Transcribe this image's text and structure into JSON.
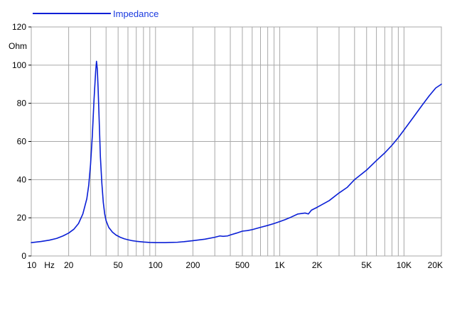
{
  "colors": {
    "series": "#0a1fd6",
    "legend_text": "#1a3adf",
    "grid": "#a8a8a8",
    "axis": "#000000"
  },
  "chart_data": {
    "type": "line",
    "x_scale": "log",
    "y_unit": "Ohm",
    "xlim": [
      10,
      20000
    ],
    "ylim": [
      0,
      120
    ],
    "grid": true,
    "legend_position": "top-left",
    "x_ticks": [
      {
        "value": 10,
        "label": "10"
      },
      {
        "value": 20,
        "label": "20"
      },
      {
        "value": 50,
        "label": "50"
      },
      {
        "value": 100,
        "label": "100"
      },
      {
        "value": 200,
        "label": "200"
      },
      {
        "value": 500,
        "label": "500"
      },
      {
        "value": 1000,
        "label": "1K"
      },
      {
        "value": 2000,
        "label": "2K"
      },
      {
        "value": 5000,
        "label": "5K"
      },
      {
        "value": 10000,
        "label": "10K"
      },
      {
        "value": 20000,
        "label": "20K"
      }
    ],
    "x_unit_label": "Hz",
    "y_ticks": [
      0,
      20,
      40,
      60,
      80,
      100,
      120
    ],
    "series": [
      {
        "name": "Impedance",
        "x": [
          10,
          12,
          14,
          16,
          18,
          20,
          22,
          24,
          26,
          28,
          29,
          30,
          31,
          32,
          33,
          33.5,
          34,
          34.5,
          35,
          35.5,
          36,
          37,
          38,
          39,
          40,
          42,
          45,
          48,
          52,
          56,
          60,
          65,
          70,
          80,
          90,
          100,
          110,
          120,
          130,
          150,
          170,
          200,
          250,
          300,
          330,
          350,
          380,
          400,
          450,
          500,
          550,
          600,
          700,
          800,
          900,
          1000,
          1100,
          1200,
          1400,
          1600,
          1700,
          1800,
          2000,
          2500,
          3000,
          3500,
          4000,
          5000,
          6000,
          7000,
          8000,
          9000,
          10000,
          12000,
          14000,
          16000,
          18000,
          20000
        ],
        "y": [
          7,
          7.6,
          8.3,
          9.2,
          10.5,
          12,
          14,
          17,
          22,
          30,
          37,
          48,
          63,
          82,
          97,
          102,
          98,
          88,
          76,
          64,
          52,
          38,
          28,
          22,
          18.5,
          15,
          12.5,
          11,
          9.8,
          9,
          8.5,
          8,
          7.7,
          7.3,
          7.1,
          7,
          7,
          7,
          7.1,
          7.2,
          7.5,
          8,
          8.8,
          9.8,
          10.5,
          10.3,
          10.5,
          11,
          12,
          13,
          13.3,
          13.8,
          15,
          16,
          17,
          18,
          19,
          20,
          22,
          22.5,
          22,
          24,
          25.5,
          29,
          33,
          36,
          40,
          45,
          50,
          54,
          58,
          62,
          66,
          73,
          79,
          84,
          88,
          90
        ]
      }
    ]
  }
}
